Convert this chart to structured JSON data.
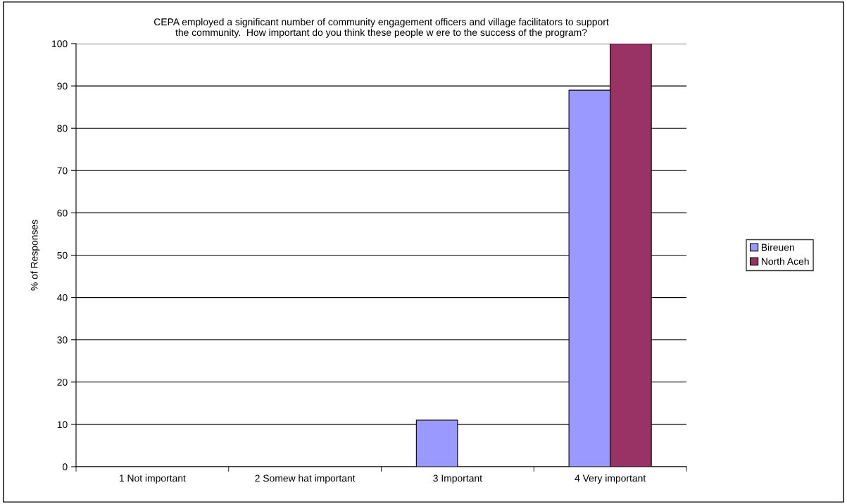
{
  "chart_data": {
    "type": "bar",
    "title": "CEPA employed a significant number of community engagement officers and village facilitators to support\nthe community.  How important do you think these people w ere to the success of the program?",
    "ylabel": "% of Responses",
    "categories": [
      "1 Not important",
      "2 Somew hat important",
      "3 Important",
      "4 Very important"
    ],
    "series": [
      {
        "name": "Bireuen",
        "color": "#9999ff",
        "values": [
          0,
          0,
          11,
          89
        ]
      },
      {
        "name": "North Aceh",
        "color": "#993366",
        "values": [
          0,
          0,
          0,
          100
        ]
      }
    ],
    "ylim": [
      0,
      100
    ],
    "yticks": [
      0,
      10,
      20,
      30,
      40,
      50,
      60,
      70,
      80,
      90,
      100
    ],
    "grid": "y",
    "legend": "right"
  }
}
